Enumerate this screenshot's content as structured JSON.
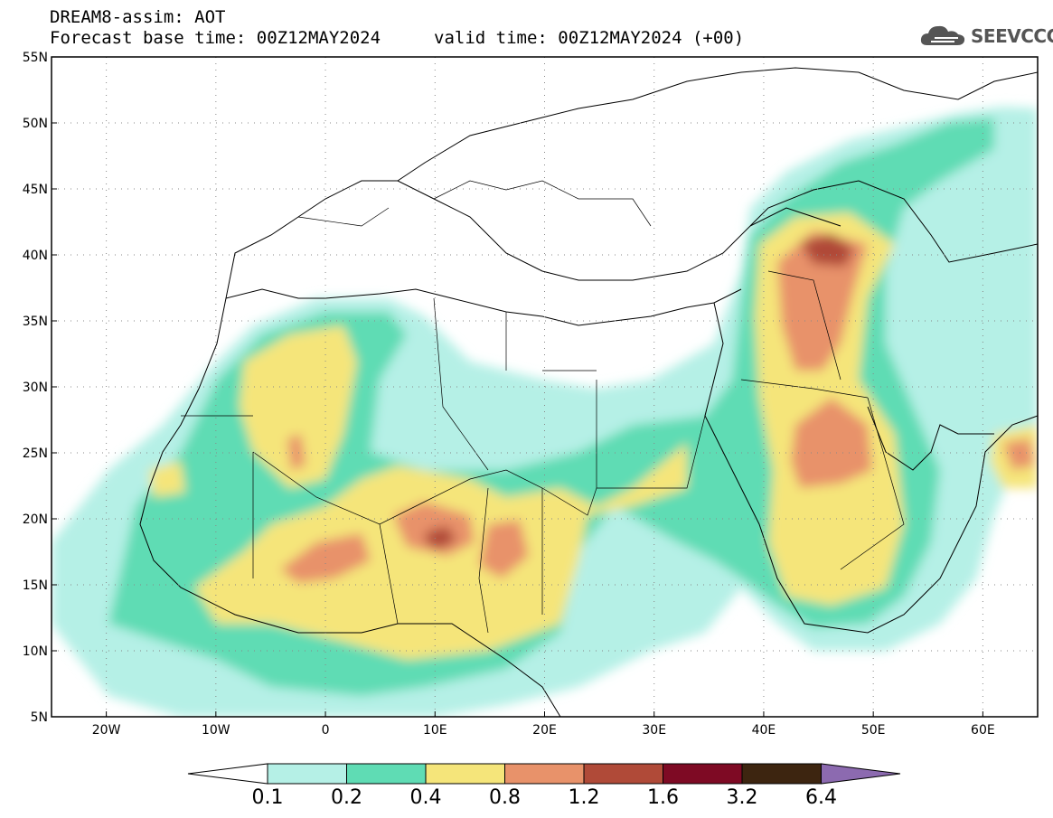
{
  "header": {
    "title_line1": "DREAM8-assim: AOT",
    "forecast_base": "Forecast base time: 00Z12MAY2024",
    "valid_time": "valid time: 00Z12MAY2024 (+00)"
  },
  "logo": {
    "text": "SEEVCCC",
    "icon": "cloud-logo-icon"
  },
  "map": {
    "lon_range": [
      -25,
      65
    ],
    "lat_range": [
      5,
      55
    ],
    "lat_ticks": [
      {
        "value": 5,
        "label": "5N"
      },
      {
        "value": 10,
        "label": "10N"
      },
      {
        "value": 15,
        "label": "15N"
      },
      {
        "value": 20,
        "label": "20N"
      },
      {
        "value": 25,
        "label": "25N"
      },
      {
        "value": 30,
        "label": "30N"
      },
      {
        "value": 35,
        "label": "35N"
      },
      {
        "value": 40,
        "label": "40N"
      },
      {
        "value": 45,
        "label": "45N"
      },
      {
        "value": 50,
        "label": "50N"
      },
      {
        "value": 55,
        "label": "55N"
      }
    ],
    "lon_ticks": [
      {
        "value": -20,
        "label": "20W"
      },
      {
        "value": -10,
        "label": "10W"
      },
      {
        "value": 0,
        "label": "0"
      },
      {
        "value": 10,
        "label": "10E"
      },
      {
        "value": 20,
        "label": "20E"
      },
      {
        "value": 30,
        "label": "30E"
      },
      {
        "value": 40,
        "label": "40E"
      },
      {
        "value": 50,
        "label": "50E"
      },
      {
        "value": 60,
        "label": "60E"
      }
    ],
    "grid": "dotted"
  },
  "colorbar": {
    "levels": [
      "0.1",
      "0.2",
      "0.4",
      "0.8",
      "1.2",
      "1.6",
      "3.2",
      "6.4"
    ],
    "colors": [
      "#b5f0e6",
      "#5fdcb4",
      "#f5e57a",
      "#e8926a",
      "#b04a38",
      "#7e0a24",
      "#3d2510",
      "#8c6ab0"
    ]
  }
}
